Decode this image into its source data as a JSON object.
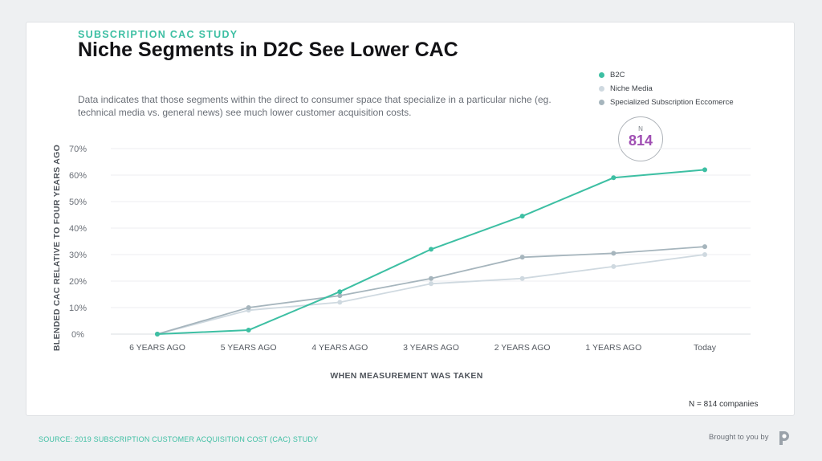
{
  "kicker": "SUBSCRIPTION CAC STUDY",
  "title": "Niche Segments in D2C See Lower CAC",
  "description": "Data indicates that those segments within the direct to consumer space that specialize in a particular niche (eg. technical media vs. general news) see much lower customer acquisition costs.",
  "badge": {
    "label": "N",
    "value": "814"
  },
  "sample_note": "N = 814 companies",
  "footer": {
    "source": "SOURCE: 2019 SUBSCRIPTION CUSTOMER ACQUISITION COST (CAC) STUDY",
    "brought_by": "Brought to you by"
  },
  "colors": {
    "accent": "#3dbfa3",
    "badge_value": "#a04fb3"
  },
  "chart_data": {
    "type": "line",
    "xlabel": "WHEN MEASUREMENT WAS TAKEN",
    "ylabel": "BLENDED CAC RELATIVE TO FOUR YEARS AGO",
    "categories": [
      "6 YEARS AGO",
      "5 YEARS AGO",
      "4 YEARS AGO",
      "3 YEARS AGO",
      "2 YEARS AGO",
      "1 YEARS AGO",
      "Today"
    ],
    "ylim": [
      0,
      70
    ],
    "yticks": [
      "0%",
      "10%",
      "20%",
      "30%",
      "40%",
      "50%",
      "60%",
      "70%"
    ],
    "grid": true,
    "legend_position": "top-right",
    "series": [
      {
        "name": "B2C",
        "color": "#3dbfa3",
        "values": [
          0,
          1.5,
          16,
          32,
          44.5,
          59,
          62
        ]
      },
      {
        "name": "Niche Media",
        "color": "#cfd9e0",
        "values": [
          0,
          9,
          12,
          19,
          21,
          25.5,
          30
        ]
      },
      {
        "name": "Specialized Subscription Eccomerce",
        "color": "#a6b5bd",
        "values": [
          0,
          10,
          14.5,
          21,
          29,
          30.5,
          33
        ]
      }
    ]
  }
}
